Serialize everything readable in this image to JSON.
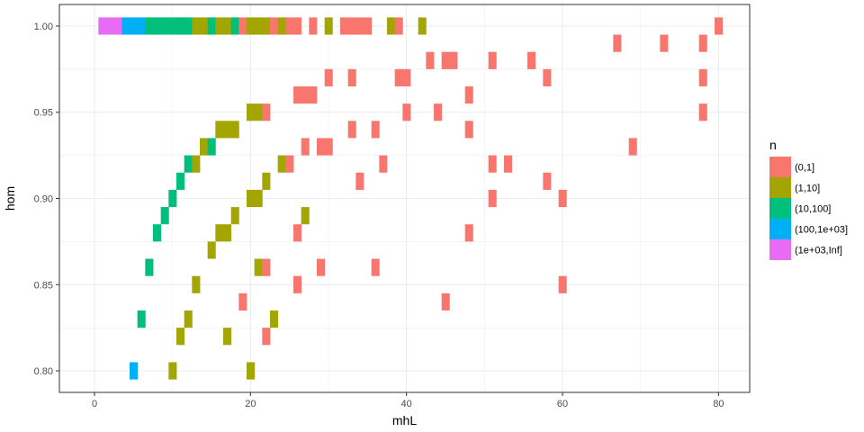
{
  "chart_data": {
    "type": "heatmap",
    "xlabel": "mhL",
    "ylabel": "hom",
    "xlim": [
      -4.5,
      84
    ],
    "ylim": [
      0.7875,
      1.0125
    ],
    "x_ticks": [
      0,
      20,
      40,
      60,
      80
    ],
    "x_tick_labels": [
      "0",
      "20",
      "40",
      "60",
      "80"
    ],
    "y_ticks": [
      0.8,
      0.85,
      0.9,
      0.95,
      1.0
    ],
    "y_tick_labels": [
      "0.80",
      "0.85",
      "0.90",
      "0.95",
      "1.00"
    ],
    "grid": true,
    "legend": {
      "title": "n",
      "position": "right",
      "entries": [
        {
          "label": "(0,1]",
          "color": "#F8766D"
        },
        {
          "label": "(1,10]",
          "color": "#A3A500"
        },
        {
          "label": "(10,100]",
          "color": "#00BF7D"
        },
        {
          "label": "(100,1e+03]",
          "color": "#00B0F6"
        },
        {
          "label": "(1e+03,Inf]",
          "color": "#E76BF3"
        }
      ]
    },
    "cell_width": 1,
    "cell_height": 0.01,
    "cells": [
      {
        "x": 1,
        "y": 1.0,
        "bin": 4
      },
      {
        "x": 2,
        "y": 1.0,
        "bin": 4
      },
      {
        "x": 3,
        "y": 1.0,
        "bin": 4
      },
      {
        "x": 4,
        "y": 1.0,
        "bin": 3
      },
      {
        "x": 5,
        "y": 1.0,
        "bin": 3
      },
      {
        "x": 6,
        "y": 1.0,
        "bin": 3
      },
      {
        "x": 7,
        "y": 1.0,
        "bin": 2
      },
      {
        "x": 8,
        "y": 1.0,
        "bin": 2
      },
      {
        "x": 9,
        "y": 1.0,
        "bin": 2
      },
      {
        "x": 10,
        "y": 1.0,
        "bin": 2
      },
      {
        "x": 11,
        "y": 1.0,
        "bin": 2
      },
      {
        "x": 12,
        "y": 1.0,
        "bin": 2
      },
      {
        "x": 13,
        "y": 1.0,
        "bin": 1
      },
      {
        "x": 14,
        "y": 1.0,
        "bin": 1
      },
      {
        "x": 15,
        "y": 1.0,
        "bin": 2
      },
      {
        "x": 16,
        "y": 1.0,
        "bin": 1
      },
      {
        "x": 17,
        "y": 1.0,
        "bin": 1
      },
      {
        "x": 18,
        "y": 1.0,
        "bin": 2
      },
      {
        "x": 19,
        "y": 1.0,
        "bin": 0
      },
      {
        "x": 20,
        "y": 1.0,
        "bin": 1
      },
      {
        "x": 21,
        "y": 1.0,
        "bin": 1
      },
      {
        "x": 22,
        "y": 1.0,
        "bin": 1
      },
      {
        "x": 23,
        "y": 1.0,
        "bin": 0
      },
      {
        "x": 24,
        "y": 1.0,
        "bin": 1
      },
      {
        "x": 25,
        "y": 1.0,
        "bin": 0
      },
      {
        "x": 26,
        "y": 1.0,
        "bin": 0
      },
      {
        "x": 28,
        "y": 1.0,
        "bin": 0
      },
      {
        "x": 30,
        "y": 1.0,
        "bin": 1
      },
      {
        "x": 32,
        "y": 1.0,
        "bin": 0
      },
      {
        "x": 33,
        "y": 1.0,
        "bin": 0
      },
      {
        "x": 34,
        "y": 1.0,
        "bin": 0
      },
      {
        "x": 35,
        "y": 1.0,
        "bin": 0
      },
      {
        "x": 38,
        "y": 1.0,
        "bin": 1
      },
      {
        "x": 39,
        "y": 1.0,
        "bin": 0
      },
      {
        "x": 42,
        "y": 1.0,
        "bin": 1
      },
      {
        "x": 80,
        "y": 1.0,
        "bin": 0
      },
      {
        "x": 67,
        "y": 0.99,
        "bin": 0
      },
      {
        "x": 73,
        "y": 0.99,
        "bin": 0
      },
      {
        "x": 78,
        "y": 0.99,
        "bin": 0
      },
      {
        "x": 43,
        "y": 0.98,
        "bin": 0
      },
      {
        "x": 45,
        "y": 0.98,
        "bin": 0
      },
      {
        "x": 46,
        "y": 0.98,
        "bin": 0
      },
      {
        "x": 51,
        "y": 0.98,
        "bin": 0
      },
      {
        "x": 56,
        "y": 0.98,
        "bin": 0
      },
      {
        "x": 30,
        "y": 0.97,
        "bin": 0
      },
      {
        "x": 33,
        "y": 0.97,
        "bin": 0
      },
      {
        "x": 39,
        "y": 0.97,
        "bin": 0
      },
      {
        "x": 40,
        "y": 0.97,
        "bin": 0
      },
      {
        "x": 58,
        "y": 0.97,
        "bin": 0
      },
      {
        "x": 78,
        "y": 0.97,
        "bin": 0
      },
      {
        "x": 26,
        "y": 0.96,
        "bin": 0
      },
      {
        "x": 27,
        "y": 0.96,
        "bin": 0
      },
      {
        "x": 28,
        "y": 0.96,
        "bin": 0
      },
      {
        "x": 48,
        "y": 0.96,
        "bin": 0
      },
      {
        "x": 20,
        "y": 0.95,
        "bin": 1
      },
      {
        "x": 21,
        "y": 0.95,
        "bin": 1
      },
      {
        "x": 22,
        "y": 0.95,
        "bin": 0
      },
      {
        "x": 40,
        "y": 0.95,
        "bin": 0
      },
      {
        "x": 44,
        "y": 0.95,
        "bin": 0
      },
      {
        "x": 78,
        "y": 0.95,
        "bin": 0
      },
      {
        "x": 16,
        "y": 0.94,
        "bin": 1
      },
      {
        "x": 17,
        "y": 0.94,
        "bin": 1
      },
      {
        "x": 18,
        "y": 0.94,
        "bin": 1
      },
      {
        "x": 33,
        "y": 0.94,
        "bin": 0
      },
      {
        "x": 36,
        "y": 0.94,
        "bin": 0
      },
      {
        "x": 48,
        "y": 0.94,
        "bin": 0
      },
      {
        "x": 14,
        "y": 0.93,
        "bin": 1
      },
      {
        "x": 15,
        "y": 0.93,
        "bin": 2
      },
      {
        "x": 27,
        "y": 0.93,
        "bin": 0
      },
      {
        "x": 29,
        "y": 0.93,
        "bin": 0
      },
      {
        "x": 30,
        "y": 0.93,
        "bin": 0
      },
      {
        "x": 69,
        "y": 0.93,
        "bin": 0
      },
      {
        "x": 12,
        "y": 0.92,
        "bin": 2
      },
      {
        "x": 13,
        "y": 0.92,
        "bin": 1
      },
      {
        "x": 24,
        "y": 0.92,
        "bin": 1
      },
      {
        "x": 25,
        "y": 0.92,
        "bin": 0
      },
      {
        "x": 37,
        "y": 0.92,
        "bin": 0
      },
      {
        "x": 51,
        "y": 0.92,
        "bin": 0
      },
      {
        "x": 53,
        "y": 0.92,
        "bin": 0
      },
      {
        "x": 11,
        "y": 0.91,
        "bin": 2
      },
      {
        "x": 22,
        "y": 0.91,
        "bin": 1
      },
      {
        "x": 34,
        "y": 0.91,
        "bin": 0
      },
      {
        "x": 58,
        "y": 0.91,
        "bin": 0
      },
      {
        "x": 10,
        "y": 0.9,
        "bin": 2
      },
      {
        "x": 20,
        "y": 0.9,
        "bin": 1
      },
      {
        "x": 21,
        "y": 0.9,
        "bin": 1
      },
      {
        "x": 51,
        "y": 0.9,
        "bin": 0
      },
      {
        "x": 60,
        "y": 0.9,
        "bin": 0
      },
      {
        "x": 9,
        "y": 0.89,
        "bin": 2
      },
      {
        "x": 18,
        "y": 0.89,
        "bin": 1
      },
      {
        "x": 27,
        "y": 0.89,
        "bin": 1
      },
      {
        "x": 8,
        "y": 0.88,
        "bin": 2
      },
      {
        "x": 16,
        "y": 0.88,
        "bin": 1
      },
      {
        "x": 17,
        "y": 0.88,
        "bin": 1
      },
      {
        "x": 26,
        "y": 0.88,
        "bin": 0
      },
      {
        "x": 48,
        "y": 0.88,
        "bin": 0
      },
      {
        "x": 15,
        "y": 0.87,
        "bin": 1
      },
      {
        "x": 7,
        "y": 0.86,
        "bin": 2
      },
      {
        "x": 21,
        "y": 0.86,
        "bin": 1
      },
      {
        "x": 22,
        "y": 0.86,
        "bin": 0
      },
      {
        "x": 29,
        "y": 0.86,
        "bin": 0
      },
      {
        "x": 36,
        "y": 0.86,
        "bin": 0
      },
      {
        "x": 13,
        "y": 0.85,
        "bin": 1
      },
      {
        "x": 26,
        "y": 0.85,
        "bin": 0
      },
      {
        "x": 60,
        "y": 0.85,
        "bin": 0
      },
      {
        "x": 19,
        "y": 0.84,
        "bin": 0
      },
      {
        "x": 45,
        "y": 0.84,
        "bin": 0
      },
      {
        "x": 6,
        "y": 0.83,
        "bin": 2
      },
      {
        "x": 12,
        "y": 0.83,
        "bin": 1
      },
      {
        "x": 23,
        "y": 0.83,
        "bin": 1
      },
      {
        "x": 11,
        "y": 0.82,
        "bin": 1
      },
      {
        "x": 17,
        "y": 0.82,
        "bin": 1
      },
      {
        "x": 22,
        "y": 0.82,
        "bin": 0
      },
      {
        "x": 5,
        "y": 0.8,
        "bin": 3
      },
      {
        "x": 10,
        "y": 0.8,
        "bin": 1
      },
      {
        "x": 20,
        "y": 0.8,
        "bin": 1
      }
    ]
  }
}
